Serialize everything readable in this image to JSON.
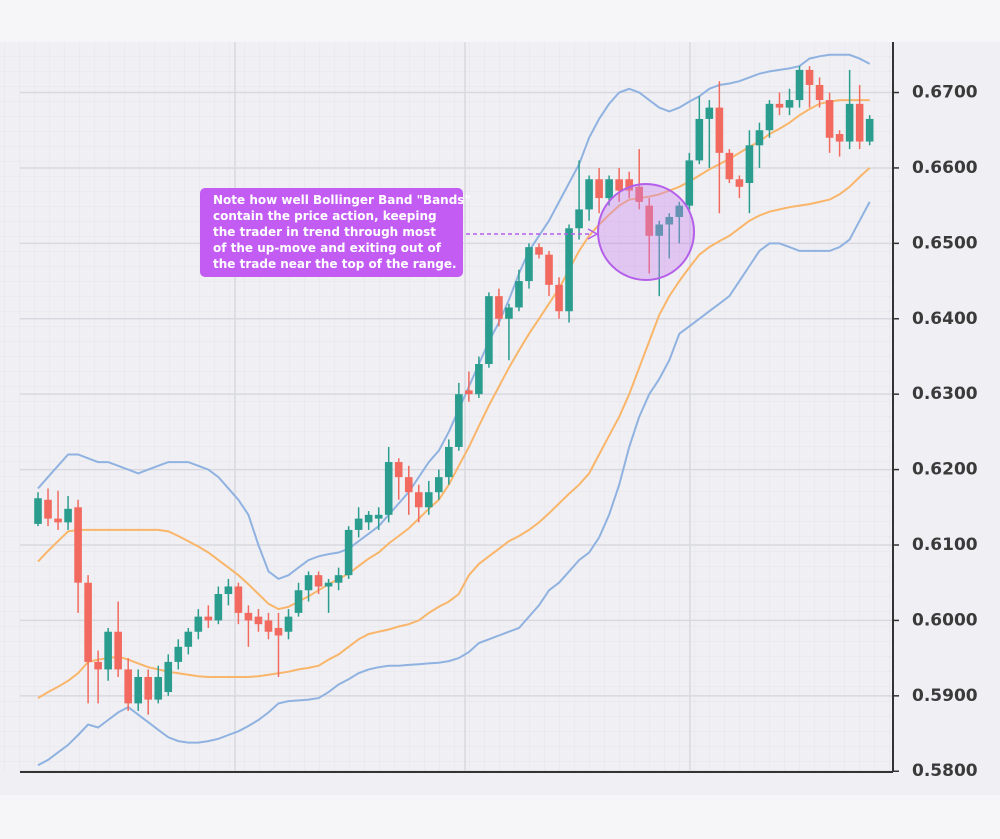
{
  "chart_data": {
    "type": "candlestick",
    "categories": [
      null,
      null,
      null,
      null,
      null,
      null,
      null,
      null,
      null,
      null,
      null,
      null,
      null,
      null,
      null,
      null,
      null,
      null,
      null,
      null,
      null,
      null,
      null,
      null,
      null,
      null,
      null,
      null,
      null,
      null,
      null,
      null,
      null,
      null,
      null,
      null,
      null,
      null,
      null,
      null,
      null,
      null,
      null,
      null,
      null,
      null,
      null,
      null,
      null,
      null,
      null,
      null,
      null,
      null,
      null,
      null,
      null,
      null,
      null,
      null,
      null,
      null,
      null,
      null,
      null,
      null,
      null,
      null,
      null,
      null,
      null,
      null,
      null,
      null,
      null,
      null,
      null,
      null,
      null,
      null,
      null,
      null,
      null,
      null
    ],
    "open": [
      0.6128,
      0.616,
      0.6135,
      0.613,
      0.615,
      0.605,
      0.5945,
      0.5935,
      0.5985,
      0.5935,
      0.589,
      0.5925,
      0.5895,
      0.5905,
      0.5945,
      0.5965,
      0.5985,
      0.6005,
      0.6,
      0.6035,
      0.6045,
      0.601,
      0.6005,
      0.6,
      0.599,
      0.5985,
      0.601,
      0.604,
      0.606,
      0.6045,
      0.605,
      0.606,
      0.612,
      0.613,
      0.6135,
      0.614,
      0.621,
      0.619,
      0.617,
      0.615,
      0.617,
      0.619,
      0.623,
      0.6305,
      0.63,
      0.634,
      0.643,
      0.64,
      0.6415,
      0.645,
      0.6495,
      0.6485,
      0.6445,
      0.641,
      0.652,
      0.6545,
      0.6585,
      0.656,
      0.6585,
      0.6585,
      0.6575,
      0.655,
      0.651,
      0.6525,
      0.6535,
      0.655,
      0.661,
      0.6665,
      0.668,
      0.662,
      0.6585,
      0.658,
      0.663,
      0.665,
      0.6685,
      0.668,
      0.669,
      0.673,
      0.671,
      0.669,
      0.6645,
      0.6635,
      0.6685,
      0.6635
    ],
    "high": [
      0.617,
      0.6175,
      0.6172,
      0.6165,
      0.616,
      0.606,
      0.596,
      0.599,
      0.6025,
      0.595,
      0.5935,
      0.5935,
      0.594,
      0.5955,
      0.5975,
      0.599,
      0.6015,
      0.602,
      0.6045,
      0.6055,
      0.605,
      0.602,
      0.6015,
      0.601,
      0.601,
      0.6015,
      0.605,
      0.6065,
      0.6065,
      0.6055,
      0.607,
      0.6125,
      0.615,
      0.6145,
      0.615,
      0.623,
      0.6215,
      0.6205,
      0.618,
      0.6185,
      0.62,
      0.624,
      0.6315,
      0.633,
      0.635,
      0.6435,
      0.644,
      0.642,
      0.6465,
      0.65,
      0.65,
      0.649,
      0.6455,
      0.6525,
      0.661,
      0.659,
      0.66,
      0.659,
      0.66,
      0.6595,
      0.6625,
      0.656,
      0.653,
      0.654,
      0.6555,
      0.662,
      0.6695,
      0.669,
      0.6715,
      0.6625,
      0.659,
      0.665,
      0.666,
      0.669,
      0.67,
      0.6705,
      0.6735,
      0.6735,
      0.672,
      0.67,
      0.665,
      0.673,
      0.671,
      0.667
    ],
    "low": [
      0.6125,
      0.6125,
      0.612,
      0.612,
      0.601,
      0.589,
      0.589,
      0.592,
      0.5925,
      0.588,
      0.588,
      0.5875,
      0.589,
      0.59,
      0.5935,
      0.5955,
      0.5975,
      0.599,
      0.5995,
      0.602,
      0.5995,
      0.5965,
      0.5985,
      0.5975,
      0.5925,
      0.5975,
      0.6005,
      0.6025,
      0.6035,
      0.601,
      0.604,
      0.6055,
      0.611,
      0.612,
      0.612,
      0.613,
      0.616,
      0.614,
      0.613,
      0.614,
      0.616,
      0.618,
      0.6225,
      0.629,
      0.6295,
      0.6335,
      0.639,
      0.6345,
      0.641,
      0.644,
      0.648,
      0.643,
      0.64,
      0.6395,
      0.6505,
      0.653,
      0.654,
      0.655,
      0.6555,
      0.656,
      0.6545,
      0.646,
      0.643,
      0.648,
      0.65,
      0.6545,
      0.6605,
      0.66,
      0.654,
      0.658,
      0.656,
      0.654,
      0.66,
      0.664,
      0.667,
      0.667,
      0.668,
      0.668,
      0.668,
      0.662,
      0.6615,
      0.6625,
      0.6625,
      0.663
    ],
    "close": [
      0.6162,
      0.6135,
      0.613,
      0.6148,
      0.605,
      0.5945,
      0.5935,
      0.5985,
      0.5935,
      0.589,
      0.5925,
      0.5895,
      0.5925,
      0.5945,
      0.5965,
      0.5985,
      0.6005,
      0.6,
      0.6035,
      0.6045,
      0.601,
      0.6,
      0.5995,
      0.5985,
      0.598,
      0.6005,
      0.604,
      0.606,
      0.6045,
      0.605,
      0.606,
      0.612,
      0.6135,
      0.614,
      0.614,
      0.621,
      0.619,
      0.617,
      0.615,
      0.617,
      0.619,
      0.623,
      0.63,
      0.63,
      0.634,
      0.643,
      0.64,
      0.6415,
      0.645,
      0.6495,
      0.6485,
      0.6445,
      0.641,
      0.652,
      0.6545,
      0.6585,
      0.656,
      0.6585,
      0.657,
      0.657,
      0.6555,
      0.651,
      0.6525,
      0.6535,
      0.655,
      0.661,
      0.6665,
      0.668,
      0.662,
      0.6585,
      0.6575,
      0.663,
      0.665,
      0.6685,
      0.668,
      0.669,
      0.673,
      0.671,
      0.669,
      0.664,
      0.6635,
      0.6685,
      0.6635,
      0.6665
    ],
    "up_color": "#2a9d8f",
    "down_color": "#f26a5f",
    "series": [
      {
        "color": "#8fb2e0",
        "values": [
          0.6175,
          0.619,
          0.6205,
          0.622,
          0.622,
          0.6215,
          0.621,
          0.621,
          0.6205,
          0.62,
          0.6195,
          0.62,
          0.6205,
          0.621,
          0.621,
          0.621,
          0.6205,
          0.62,
          0.619,
          0.6175,
          0.616,
          0.614,
          0.61,
          0.6065,
          0.6055,
          0.606,
          0.607,
          0.608,
          0.6085,
          0.6088,
          0.609,
          0.6095,
          0.6105,
          0.6115,
          0.6125,
          0.614,
          0.6155,
          0.617,
          0.619,
          0.621,
          0.6225,
          0.625,
          0.628,
          0.631,
          0.634,
          0.637,
          0.6395,
          0.6425,
          0.646,
          0.649,
          0.651,
          0.653,
          0.6555,
          0.658,
          0.6605,
          0.664,
          0.6665,
          0.6685,
          0.67,
          0.6705,
          0.67,
          0.669,
          0.668,
          0.6675,
          0.668,
          0.6688,
          0.6695,
          0.6705,
          0.671,
          0.6712,
          0.6715,
          0.672,
          0.6725,
          0.6728,
          0.673,
          0.6732,
          0.6735,
          0.6745,
          0.6748,
          0.675,
          0.675,
          0.675,
          0.6745,
          0.6738
        ]
      },
      {
        "color": "#f9b56a",
        "values": [
          0.6078,
          0.6092,
          0.6105,
          0.6118,
          0.612,
          0.612,
          0.612,
          0.612,
          0.612,
          0.612,
          0.612,
          0.612,
          0.612,
          0.6118,
          0.6112,
          0.6105,
          0.6098,
          0.609,
          0.608,
          0.607,
          0.606,
          0.6048,
          0.6035,
          0.6022,
          0.6015,
          0.6018,
          0.6025,
          0.6032,
          0.604,
          0.6048,
          0.6055,
          0.6062,
          0.6072,
          0.6082,
          0.609,
          0.6102,
          0.6112,
          0.6122,
          0.6135,
          0.6148,
          0.616,
          0.618,
          0.6205,
          0.623,
          0.6258,
          0.6285,
          0.631,
          0.6335,
          0.6358,
          0.638,
          0.64,
          0.642,
          0.644,
          0.6465,
          0.649,
          0.651,
          0.6525,
          0.6538,
          0.655,
          0.6558,
          0.656,
          0.6562,
          0.6565,
          0.657,
          0.6575,
          0.6582,
          0.659,
          0.6598,
          0.6605,
          0.6612,
          0.662,
          0.6628,
          0.6635,
          0.6645,
          0.6652,
          0.666,
          0.667,
          0.6678,
          0.6685,
          0.6688,
          0.669,
          0.669,
          0.669,
          0.669
        ]
      },
      {
        "color": "#f9b56a",
        "values": [
          0.5897,
          0.5905,
          0.5912,
          0.592,
          0.593,
          0.5945,
          0.5948,
          0.595,
          0.5952,
          0.5948,
          0.5943,
          0.5938,
          0.5935,
          0.5932,
          0.593,
          0.5928,
          0.5926,
          0.5925,
          0.5925,
          0.5925,
          0.5925,
          0.5925,
          0.5926,
          0.5928,
          0.593,
          0.5932,
          0.5935,
          0.5937,
          0.594,
          0.5948,
          0.5955,
          0.5965,
          0.5975,
          0.5982,
          0.5985,
          0.5988,
          0.5992,
          0.5995,
          0.6,
          0.601,
          0.6018,
          0.6025,
          0.6035,
          0.606,
          0.6075,
          0.6085,
          0.6095,
          0.6105,
          0.6112,
          0.612,
          0.613,
          0.6142,
          0.6155,
          0.6168,
          0.618,
          0.6195,
          0.622,
          0.6245,
          0.627,
          0.63,
          0.6335,
          0.637,
          0.6405,
          0.643,
          0.645,
          0.6468,
          0.6485,
          0.6495,
          0.6503,
          0.651,
          0.652,
          0.653,
          0.6537,
          0.6542,
          0.6545,
          0.6548,
          0.655,
          0.6552,
          0.6555,
          0.6558,
          0.6565,
          0.6575,
          0.6588,
          0.66
        ]
      },
      {
        "color": "#8fb2e0",
        "values": [
          0.5808,
          0.5815,
          0.5825,
          0.5835,
          0.5848,
          0.5862,
          0.5858,
          0.5868,
          0.5878,
          0.5885,
          0.5875,
          0.5865,
          0.5855,
          0.5845,
          0.584,
          0.5838,
          0.5838,
          0.584,
          0.5843,
          0.5848,
          0.5853,
          0.586,
          0.5868,
          0.5878,
          0.589,
          0.5893,
          0.5894,
          0.5895,
          0.5897,
          0.5905,
          0.5915,
          0.5922,
          0.593,
          0.5935,
          0.5938,
          0.594,
          0.594,
          0.5941,
          0.5942,
          0.5943,
          0.5944,
          0.5946,
          0.595,
          0.5958,
          0.597,
          0.5975,
          0.598,
          0.5985,
          0.599,
          0.6005,
          0.602,
          0.604,
          0.605,
          0.6065,
          0.608,
          0.609,
          0.611,
          0.614,
          0.618,
          0.623,
          0.627,
          0.63,
          0.632,
          0.6345,
          0.638,
          0.639,
          0.64,
          0.641,
          0.642,
          0.643,
          0.645,
          0.647,
          0.649,
          0.65,
          0.65,
          0.6495,
          0.649,
          0.649,
          0.649,
          0.649,
          0.6495,
          0.6505,
          0.653,
          0.6555
        ]
      }
    ],
    "ylim": [
      0.5799,
      0.6767
    ],
    "yticks": [
      {
        "value": 0.58,
        "label": "0.5800"
      },
      {
        "value": 0.59,
        "label": "0.5900"
      },
      {
        "value": 0.6,
        "label": "0.6000"
      },
      {
        "value": 0.61,
        "label": "0.6100"
      },
      {
        "value": 0.62,
        "label": "0.6200"
      },
      {
        "value": 0.63,
        "label": "0.6300"
      },
      {
        "value": 0.64,
        "label": "0.6400"
      },
      {
        "value": 0.65,
        "label": "0.6500"
      },
      {
        "value": 0.66,
        "label": "0.6600"
      },
      {
        "value": 0.67,
        "label": "0.6700"
      }
    ],
    "grid": true,
    "annotation": [
      "Note how well Bollinger Band \"Bands\"",
      "contain the price action, keeping",
      "the trader in trend through most",
      "of the up-move and exiting out of",
      "the trade near the top of the range."
    ]
  }
}
